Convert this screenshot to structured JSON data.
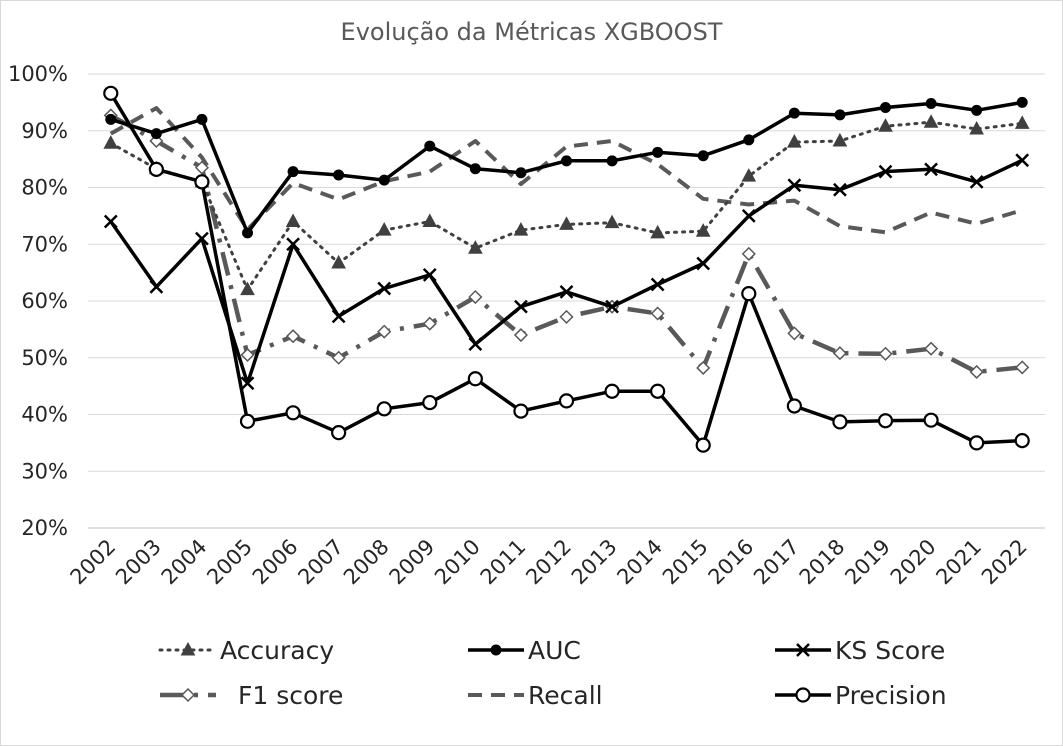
{
  "chart_data": {
    "type": "line",
    "title": "Evolução da Métricas XGBOOST",
    "xlabel": "",
    "ylabel": "",
    "x": [
      "2002",
      "2003",
      "2004",
      "2005",
      "2006",
      "2007",
      "2008",
      "2009",
      "2010",
      "2011",
      "2012",
      "2013",
      "2014",
      "2015",
      "2016",
      "2017",
      "2018",
      "2019",
      "2020",
      "2021",
      "2022"
    ],
    "ylim": [
      0.2,
      1.0
    ],
    "yticks": [
      "20%",
      "30%",
      "40%",
      "50%",
      "60%",
      "70%",
      "80%",
      "90%",
      "100%"
    ],
    "grid": true,
    "legend_position": "bottom",
    "series": [
      {
        "name": "Accuracy",
        "style": "dotted",
        "marker": "triangle",
        "values": [
          0.878,
          0.833,
          0.81,
          0.62,
          0.74,
          0.667,
          0.725,
          0.74,
          0.693,
          0.725,
          0.735,
          0.738,
          0.72,
          0.723,
          0.82,
          0.88,
          0.882,
          0.908,
          0.915,
          0.903,
          0.913
        ]
      },
      {
        "name": "AUC",
        "style": "solid",
        "marker": "dot",
        "values": [
          0.92,
          0.895,
          0.92,
          0.72,
          0.828,
          0.822,
          0.813,
          0.873,
          0.833,
          0.826,
          0.847,
          0.847,
          0.862,
          0.856,
          0.884,
          0.931,
          0.928,
          0.941,
          0.948,
          0.936,
          0.95
        ]
      },
      {
        "name": "KS Score",
        "style": "solid",
        "marker": "x",
        "values": [
          0.74,
          0.625,
          0.71,
          0.455,
          0.7,
          0.573,
          0.622,
          0.646,
          0.524,
          0.59,
          0.616,
          0.59,
          0.629,
          0.666,
          0.75,
          0.804,
          0.796,
          0.828,
          0.832,
          0.81,
          0.848
        ]
      },
      {
        "name": "F1 score",
        "style": "dashdot",
        "marker": "diamond",
        "values": [
          0.927,
          0.882,
          0.835,
          0.505,
          0.538,
          0.5,
          0.546,
          0.56,
          0.607,
          0.54,
          0.572,
          0.59,
          0.578,
          0.482,
          0.683,
          0.543,
          0.508,
          0.507,
          0.516,
          0.475,
          0.483
        ]
      },
      {
        "name": "Recall",
        "style": "dashed",
        "marker": "none",
        "values": [
          0.895,
          0.94,
          0.853,
          0.726,
          0.808,
          0.779,
          0.811,
          0.828,
          0.882,
          0.806,
          0.872,
          0.882,
          0.841,
          0.78,
          0.77,
          0.777,
          0.732,
          0.721,
          0.756,
          0.736,
          0.76
        ]
      },
      {
        "name": "Precision",
        "style": "solid",
        "marker": "circle",
        "values": [
          0.966,
          0.832,
          0.81,
          0.388,
          0.403,
          0.368,
          0.41,
          0.421,
          0.463,
          0.406,
          0.424,
          0.441,
          0.441,
          0.346,
          0.613,
          0.415,
          0.387,
          0.389,
          0.39,
          0.35,
          0.354
        ]
      }
    ]
  }
}
